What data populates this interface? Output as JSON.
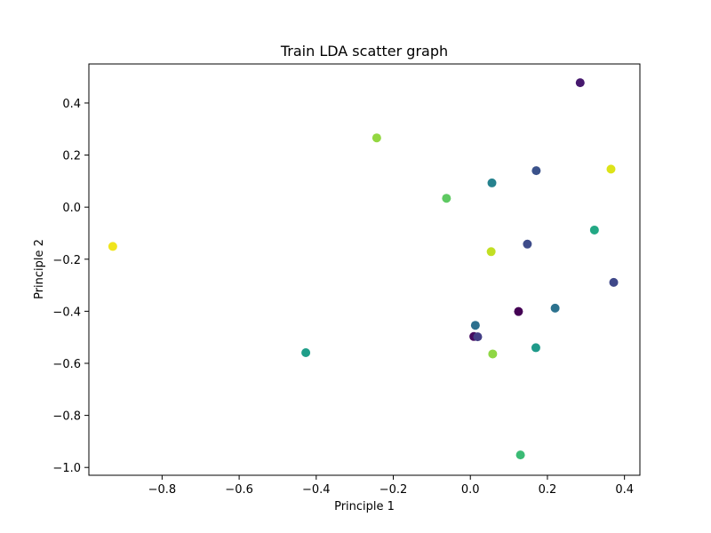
{
  "chart_data": {
    "type": "scatter",
    "title": "Train LDA scatter graph",
    "xlabel": "Principle 1",
    "ylabel": "Principle 2",
    "xlim": [
      -0.99,
      0.44
    ],
    "ylim": [
      -1.03,
      0.55
    ],
    "xticks": [
      -0.8,
      -0.6,
      -0.4,
      -0.2,
      0.0,
      0.2,
      0.4
    ],
    "xtick_labels": [
      "−0.8",
      "−0.6",
      "−0.4",
      "−0.2",
      "0.0",
      "0.2",
      "0.4"
    ],
    "yticks": [
      0.4,
      0.2,
      0.0,
      -0.2,
      -0.4,
      -0.6,
      -0.8,
      -1.0
    ],
    "ytick_labels": [
      "0.4",
      "0.2",
      "0.0",
      "−0.2",
      "−0.4",
      "−0.6",
      "−0.8",
      "−1.0"
    ],
    "grid": false,
    "legend": "none",
    "colormap": "viridis",
    "points": [
      {
        "x": 0.285,
        "y": 0.478,
        "color": "#46186e"
      },
      {
        "x": -0.243,
        "y": 0.266,
        "color": "#93d741"
      },
      {
        "x": 0.171,
        "y": 0.14,
        "color": "#3b528b"
      },
      {
        "x": 0.365,
        "y": 0.146,
        "color": "#dde318"
      },
      {
        "x": 0.056,
        "y": 0.093,
        "color": "#26828e"
      },
      {
        "x": -0.062,
        "y": 0.034,
        "color": "#5ec962"
      },
      {
        "x": 0.322,
        "y": -0.088,
        "color": "#22a884"
      },
      {
        "x": 0.148,
        "y": -0.142,
        "color": "#3e4c8a"
      },
      {
        "x": -0.928,
        "y": -0.151,
        "color": "#f0e51c"
      },
      {
        "x": 0.054,
        "y": -0.171,
        "color": "#c2df23"
      },
      {
        "x": 0.372,
        "y": -0.289,
        "color": "#3f4889"
      },
      {
        "x": 0.22,
        "y": -0.388,
        "color": "#2c728e"
      },
      {
        "x": 0.125,
        "y": -0.401,
        "color": "#440154"
      },
      {
        "x": 0.013,
        "y": -0.454,
        "color": "#2d708e"
      },
      {
        "x": 0.009,
        "y": -0.497,
        "color": "#470d60"
      },
      {
        "x": 0.019,
        "y": -0.498,
        "color": "#433e85"
      },
      {
        "x": 0.17,
        "y": -0.54,
        "color": "#1f9a8a"
      },
      {
        "x": -0.427,
        "y": -0.559,
        "color": "#1f9e89"
      },
      {
        "x": 0.058,
        "y": -0.564,
        "color": "#8fd744"
      },
      {
        "x": 0.13,
        "y": -0.952,
        "color": "#3bbb75"
      }
    ]
  }
}
